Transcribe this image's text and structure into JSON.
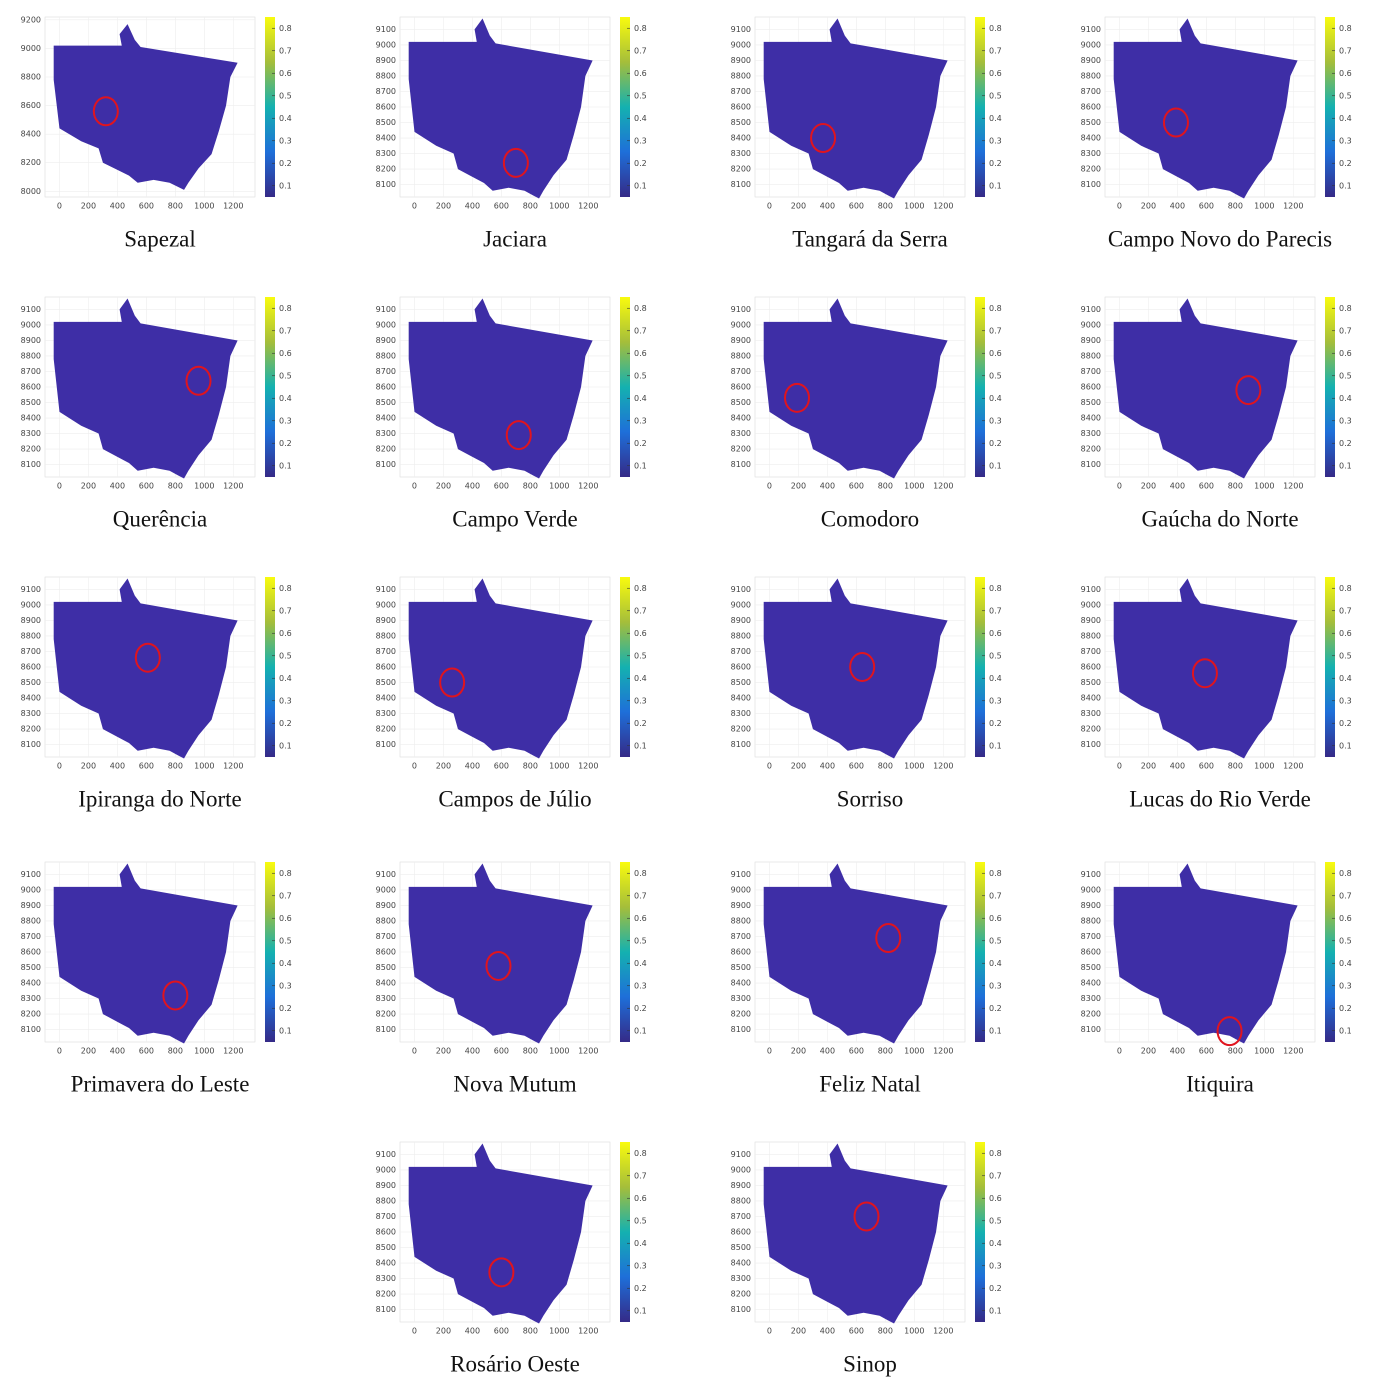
{
  "chart_data": [
    {
      "type": "map",
      "title": "Sapezal",
      "xlim": [
        -100,
        1350
      ],
      "ylim": [
        7960,
        9220
      ],
      "xticks": [
        0,
        200,
        400,
        600,
        800,
        1000,
        1200
      ],
      "yticks": [
        8000,
        8200,
        8400,
        8600,
        8800,
        9000,
        9200
      ],
      "clim": [
        0.05,
        0.85
      ],
      "cticks": [
        0.1,
        0.2,
        0.3,
        0.4,
        0.5,
        0.6,
        0.7,
        0.8
      ],
      "highlight_x": 320,
      "highlight_y": 8560
    },
    {
      "type": "map",
      "title": "Jaciara",
      "xlim": [
        -100,
        1350
      ],
      "ylim": [
        8020,
        9180
      ],
      "xticks": [
        0,
        200,
        400,
        600,
        800,
        1000,
        1200
      ],
      "yticks": [
        8100,
        8200,
        8300,
        8400,
        8500,
        8600,
        8700,
        8800,
        8900,
        9000,
        9100
      ],
      "clim": [
        0.05,
        0.85
      ],
      "cticks": [
        0.1,
        0.2,
        0.3,
        0.4,
        0.5,
        0.6,
        0.7,
        0.8
      ],
      "highlight_x": 700,
      "highlight_y": 8240
    },
    {
      "type": "map",
      "title": "Tangará da Serra",
      "xlim": [
        -100,
        1350
      ],
      "ylim": [
        8020,
        9180
      ],
      "xticks": [
        0,
        200,
        400,
        600,
        800,
        1000,
        1200
      ],
      "yticks": [
        8100,
        8200,
        8300,
        8400,
        8500,
        8600,
        8700,
        8800,
        8900,
        9000,
        9100
      ],
      "clim": [
        0.05,
        0.85
      ],
      "cticks": [
        0.1,
        0.2,
        0.3,
        0.4,
        0.5,
        0.6,
        0.7,
        0.8
      ],
      "highlight_x": 370,
      "highlight_y": 8400
    },
    {
      "type": "map",
      "title": "Campo Novo do Parecis",
      "xlim": [
        -100,
        1350
      ],
      "ylim": [
        8020,
        9180
      ],
      "xticks": [
        0,
        200,
        400,
        600,
        800,
        1000,
        1200
      ],
      "yticks": [
        8100,
        8200,
        8300,
        8400,
        8500,
        8600,
        8700,
        8800,
        8900,
        9000,
        9100
      ],
      "clim": [
        0.05,
        0.85
      ],
      "cticks": [
        0.1,
        0.2,
        0.3,
        0.4,
        0.5,
        0.6,
        0.7,
        0.8
      ],
      "highlight_x": 390,
      "highlight_y": 8500
    },
    {
      "type": "map",
      "title": "Querência",
      "xlim": [
        -100,
        1350
      ],
      "ylim": [
        8020,
        9180
      ],
      "xticks": [
        0,
        200,
        400,
        600,
        800,
        1000,
        1200
      ],
      "yticks": [
        8100,
        8200,
        8300,
        8400,
        8500,
        8600,
        8700,
        8800,
        8900,
        9000,
        9100
      ],
      "clim": [
        0.05,
        0.85
      ],
      "cticks": [
        0.1,
        0.2,
        0.3,
        0.4,
        0.5,
        0.6,
        0.7,
        0.8
      ],
      "highlight_x": 960,
      "highlight_y": 8640
    },
    {
      "type": "map",
      "title": "Campo Verde",
      "xlim": [
        -100,
        1350
      ],
      "ylim": [
        8020,
        9180
      ],
      "xticks": [
        0,
        200,
        400,
        600,
        800,
        1000,
        1200
      ],
      "yticks": [
        8100,
        8200,
        8300,
        8400,
        8500,
        8600,
        8700,
        8800,
        8900,
        9000,
        9100
      ],
      "clim": [
        0.05,
        0.85
      ],
      "cticks": [
        0.1,
        0.2,
        0.3,
        0.4,
        0.5,
        0.6,
        0.7,
        0.8
      ],
      "highlight_x": 720,
      "highlight_y": 8290
    },
    {
      "type": "map",
      "title": "Comodoro",
      "xlim": [
        -100,
        1350
      ],
      "ylim": [
        8020,
        9180
      ],
      "xticks": [
        0,
        200,
        400,
        600,
        800,
        1000,
        1200
      ],
      "yticks": [
        8100,
        8200,
        8300,
        8400,
        8500,
        8600,
        8700,
        8800,
        8900,
        9000,
        9100
      ],
      "clim": [
        0.05,
        0.85
      ],
      "cticks": [
        0.1,
        0.2,
        0.3,
        0.4,
        0.5,
        0.6,
        0.7,
        0.8
      ],
      "highlight_x": 190,
      "highlight_y": 8530
    },
    {
      "type": "map",
      "title": "Gaúcha do Norte",
      "xlim": [
        -100,
        1350
      ],
      "ylim": [
        8020,
        9180
      ],
      "xticks": [
        0,
        200,
        400,
        600,
        800,
        1000,
        1200
      ],
      "yticks": [
        8100,
        8200,
        8300,
        8400,
        8500,
        8600,
        8700,
        8800,
        8900,
        9000,
        9100
      ],
      "clim": [
        0.05,
        0.85
      ],
      "cticks": [
        0.1,
        0.2,
        0.3,
        0.4,
        0.5,
        0.6,
        0.7,
        0.8
      ],
      "highlight_x": 890,
      "highlight_y": 8580
    },
    {
      "type": "map",
      "title": "Ipiranga do Norte",
      "xlim": [
        -100,
        1350
      ],
      "ylim": [
        8020,
        9180
      ],
      "xticks": [
        0,
        200,
        400,
        600,
        800,
        1000,
        1200
      ],
      "yticks": [
        8100,
        8200,
        8300,
        8400,
        8500,
        8600,
        8700,
        8800,
        8900,
        9000,
        9100
      ],
      "clim": [
        0.05,
        0.85
      ],
      "cticks": [
        0.1,
        0.2,
        0.3,
        0.4,
        0.5,
        0.6,
        0.7,
        0.8
      ],
      "highlight_x": 610,
      "highlight_y": 8660
    },
    {
      "type": "map",
      "title": "Campos de Júlio",
      "xlim": [
        -100,
        1350
      ],
      "ylim": [
        8020,
        9180
      ],
      "xticks": [
        0,
        200,
        400,
        600,
        800,
        1000,
        1200
      ],
      "yticks": [
        8100,
        8200,
        8300,
        8400,
        8500,
        8600,
        8700,
        8800,
        8900,
        9000,
        9100
      ],
      "clim": [
        0.05,
        0.85
      ],
      "cticks": [
        0.1,
        0.2,
        0.3,
        0.4,
        0.5,
        0.6,
        0.7,
        0.8
      ],
      "highlight_x": 260,
      "highlight_y": 8500
    },
    {
      "type": "map",
      "title": "Sorriso",
      "xlim": [
        -100,
        1350
      ],
      "ylim": [
        8020,
        9180
      ],
      "xticks": [
        0,
        200,
        400,
        600,
        800,
        1000,
        1200
      ],
      "yticks": [
        8100,
        8200,
        8300,
        8400,
        8500,
        8600,
        8700,
        8800,
        8900,
        9000,
        9100
      ],
      "clim": [
        0.05,
        0.85
      ],
      "cticks": [
        0.1,
        0.2,
        0.3,
        0.4,
        0.5,
        0.6,
        0.7,
        0.8
      ],
      "highlight_x": 640,
      "highlight_y": 8600
    },
    {
      "type": "map",
      "title": "Lucas do Rio Verde",
      "xlim": [
        -100,
        1350
      ],
      "ylim": [
        8020,
        9180
      ],
      "xticks": [
        0,
        200,
        400,
        600,
        800,
        1000,
        1200
      ],
      "yticks": [
        8100,
        8200,
        8300,
        8400,
        8500,
        8600,
        8700,
        8800,
        8900,
        9000,
        9100
      ],
      "clim": [
        0.05,
        0.85
      ],
      "cticks": [
        0.1,
        0.2,
        0.3,
        0.4,
        0.5,
        0.6,
        0.7,
        0.8
      ],
      "highlight_x": 590,
      "highlight_y": 8560
    },
    {
      "type": "map",
      "title": "Primavera do Leste",
      "xlim": [
        -100,
        1350
      ],
      "ylim": [
        8020,
        9180
      ],
      "xticks": [
        0,
        200,
        400,
        600,
        800,
        1000,
        1200
      ],
      "yticks": [
        8100,
        8200,
        8300,
        8400,
        8500,
        8600,
        8700,
        8800,
        8900,
        9000,
        9100
      ],
      "clim": [
        0.05,
        0.85
      ],
      "cticks": [
        0.1,
        0.2,
        0.3,
        0.4,
        0.5,
        0.6,
        0.7,
        0.8
      ],
      "highlight_x": 800,
      "highlight_y": 8320
    },
    {
      "type": "map",
      "title": "Nova Mutum",
      "xlim": [
        -100,
        1350
      ],
      "ylim": [
        8020,
        9180
      ],
      "xticks": [
        0,
        200,
        400,
        600,
        800,
        1000,
        1200
      ],
      "yticks": [
        8100,
        8200,
        8300,
        8400,
        8500,
        8600,
        8700,
        8800,
        8900,
        9000,
        9100
      ],
      "clim": [
        0.05,
        0.85
      ],
      "cticks": [
        0.1,
        0.2,
        0.3,
        0.4,
        0.5,
        0.6,
        0.7,
        0.8
      ],
      "highlight_x": 580,
      "highlight_y": 8510
    },
    {
      "type": "map",
      "title": "Feliz Natal",
      "xlim": [
        -100,
        1350
      ],
      "ylim": [
        8020,
        9180
      ],
      "xticks": [
        0,
        200,
        400,
        600,
        800,
        1000,
        1200
      ],
      "yticks": [
        8100,
        8200,
        8300,
        8400,
        8500,
        8600,
        8700,
        8800,
        8900,
        9000,
        9100
      ],
      "clim": [
        0.05,
        0.85
      ],
      "cticks": [
        0.1,
        0.2,
        0.3,
        0.4,
        0.5,
        0.6,
        0.7,
        0.8
      ],
      "highlight_x": 820,
      "highlight_y": 8690
    },
    {
      "type": "map",
      "title": "Itiquira",
      "xlim": [
        -100,
        1350
      ],
      "ylim": [
        8020,
        9180
      ],
      "xticks": [
        0,
        200,
        400,
        600,
        800,
        1000,
        1200
      ],
      "yticks": [
        8100,
        8200,
        8300,
        8400,
        8500,
        8600,
        8700,
        8800,
        8900,
        9000,
        9100
      ],
      "clim": [
        0.05,
        0.85
      ],
      "cticks": [
        0.1,
        0.2,
        0.3,
        0.4,
        0.5,
        0.6,
        0.7,
        0.8
      ],
      "highlight_x": 760,
      "highlight_y": 8090
    },
    {
      "type": "map",
      "title": "Rosário Oeste",
      "xlim": [
        -100,
        1350
      ],
      "ylim": [
        8020,
        9180
      ],
      "xticks": [
        0,
        200,
        400,
        600,
        800,
        1000,
        1200
      ],
      "yticks": [
        8100,
        8200,
        8300,
        8400,
        8500,
        8600,
        8700,
        8800,
        8900,
        9000,
        9100
      ],
      "clim": [
        0.05,
        0.85
      ],
      "cticks": [
        0.1,
        0.2,
        0.3,
        0.4,
        0.5,
        0.6,
        0.7,
        0.8
      ],
      "highlight_x": 600,
      "highlight_y": 8340
    },
    {
      "type": "map",
      "title": "Sinop",
      "xlim": [
        -100,
        1350
      ],
      "ylim": [
        8020,
        9180
      ],
      "xticks": [
        0,
        200,
        400,
        600,
        800,
        1000,
        1200
      ],
      "yticks": [
        8100,
        8200,
        8300,
        8400,
        8500,
        8600,
        8700,
        8800,
        8900,
        9000,
        9100
      ],
      "clim": [
        0.05,
        0.85
      ],
      "cticks": [
        0.1,
        0.2,
        0.3,
        0.4,
        0.5,
        0.6,
        0.7,
        0.8
      ],
      "highlight_x": 670,
      "highlight_y": 8700
    }
  ]
}
